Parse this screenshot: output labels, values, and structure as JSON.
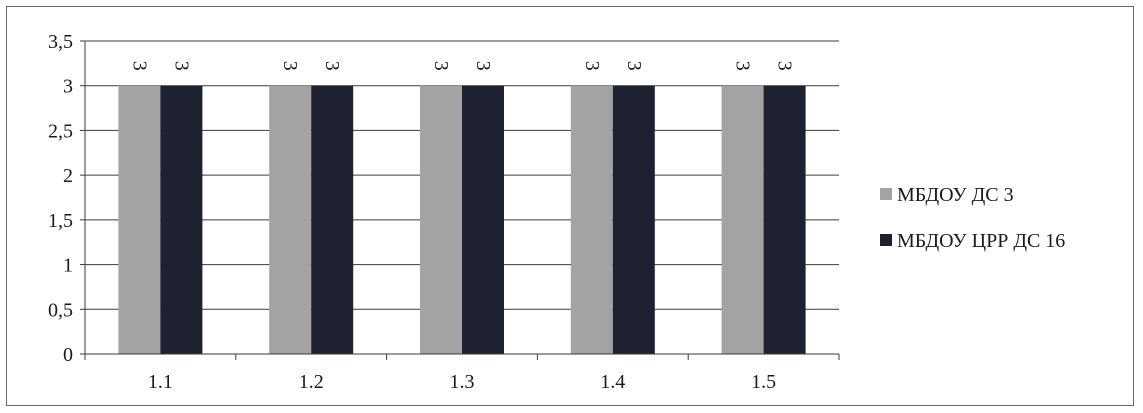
{
  "chart_data": {
    "type": "bar",
    "title": "",
    "xlabel": "",
    "ylabel": "",
    "categories": [
      "1.1",
      "1.2",
      "1.3",
      "1.4",
      "1.5"
    ],
    "series": [
      {
        "name": "МБДОУ ДС 3",
        "values": [
          3,
          3,
          3,
          3,
          3
        ],
        "color": "#a3a3a3"
      },
      {
        "name": "МБДОУ ЦРР ДС 16",
        "values": [
          3,
          3,
          3,
          3,
          3
        ],
        "color": "#1e2130"
      }
    ],
    "y_ticks": [
      "0",
      "0,5",
      "1",
      "1,5",
      "2",
      "2,5",
      "3",
      "3,5"
    ],
    "ylim": [
      0,
      3.5
    ],
    "grid": true,
    "legend": "right",
    "data_labels": [
      "3",
      "3"
    ]
  }
}
